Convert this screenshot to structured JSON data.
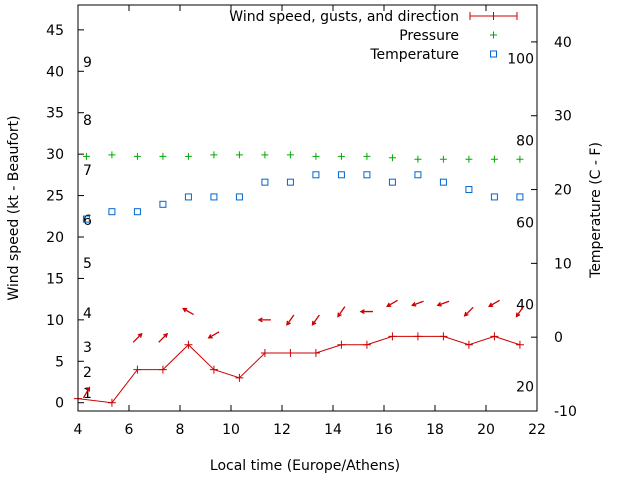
{
  "chart_data": {
    "type": "line",
    "xlabel": "Local time (Europe/Athens)",
    "ylabel": "Wind speed (kt - Beaufort)",
    "y2label": "Temperature (C - F)",
    "xlim": [
      4,
      22
    ],
    "ylim": [
      -1,
      48
    ],
    "y2lim": [
      -10,
      45
    ],
    "x_ticks": [
      4,
      6,
      8,
      10,
      12,
      14,
      16,
      18,
      20,
      22
    ],
    "y_ticks": [
      0,
      5,
      10,
      15,
      20,
      25,
      30,
      35,
      40,
      45
    ],
    "y2_ticks": [
      -10,
      0,
      10,
      20,
      30,
      40
    ],
    "beaufort_labels": [
      {
        "value": 1,
        "label": "1"
      },
      {
        "value": 2,
        "label": "2"
      },
      {
        "value": 3,
        "label": "3"
      },
      {
        "value": 4,
        "label": "4"
      },
      {
        "value": 5,
        "label": "5"
      },
      {
        "value": 6,
        "label": "6"
      },
      {
        "value": 7,
        "label": "7"
      },
      {
        "value": 8,
        "label": "8"
      },
      {
        "value": 9,
        "label": "9"
      }
    ],
    "fahrenheit_labels": [
      {
        "value": 20,
        "label": "20"
      },
      {
        "value": 40,
        "label": "40"
      },
      {
        "value": 60,
        "label": "60"
      },
      {
        "value": 80,
        "label": "80"
      },
      {
        "value": 100,
        "label": "100"
      }
    ],
    "legend": {
      "position": "top-right",
      "entries": [
        "Wind speed, gusts, and direction",
        "Pressure",
        "Temperature"
      ]
    },
    "colors": {
      "wind": "#cc0000",
      "pressure": "#00aa00",
      "temperature": "#0066cc"
    },
    "series": [
      {
        "name": "Wind speed",
        "axis": "y1",
        "x": [
          4.0,
          5.33,
          6.33,
          7.33,
          8.33,
          9.33,
          10.33,
          11.33,
          12.33,
          13.33,
          14.33,
          15.33,
          16.33,
          17.33,
          18.33,
          19.33,
          20.33,
          21.33
        ],
        "values": [
          0.5,
          0,
          4,
          4,
          7,
          4,
          3,
          6,
          6,
          6,
          7,
          7,
          8,
          8,
          8,
          7,
          8,
          7
        ]
      },
      {
        "name": "Wind direction",
        "x": [
          4.33,
          6.33,
          7.33,
          8.33,
          9.33,
          11.33,
          12.33,
          13.33,
          14.33,
          15.33,
          16.33,
          17.33,
          18.33,
          19.33,
          20.33,
          21.33
        ],
        "y": [
          1.2,
          7.8,
          7.8,
          11.0,
          8.2,
          10.0,
          10.0,
          10.0,
          11.0,
          11.0,
          12.0,
          12.0,
          12.0,
          11.0,
          12.0,
          11.0
        ],
        "angles_deg": [
          60,
          45,
          45,
          150,
          210,
          180,
          235,
          235,
          235,
          180,
          210,
          200,
          200,
          225,
          210,
          235
        ]
      },
      {
        "name": "Pressure",
        "axis": "y2",
        "x": [
          4.33,
          5.33,
          6.33,
          7.33,
          8.33,
          9.33,
          10.33,
          11.33,
          12.33,
          13.33,
          14.33,
          15.33,
          16.33,
          17.33,
          18.33,
          19.33,
          20.33,
          21.33
        ],
        "values": [
          24.5,
          24.7,
          24.5,
          24.5,
          24.5,
          24.7,
          24.7,
          24.7,
          24.7,
          24.5,
          24.5,
          24.5,
          24.3,
          24.1,
          24.1,
          24.1,
          24.1,
          24.1
        ]
      },
      {
        "name": "Temperature",
        "axis": "y2",
        "x": [
          4.33,
          5.33,
          6.33,
          7.33,
          8.33,
          9.33,
          10.33,
          11.33,
          12.33,
          13.33,
          14.33,
          15.33,
          16.33,
          17.33,
          18.33,
          19.33,
          20.33,
          21.33
        ],
        "values": [
          16,
          17,
          17,
          18,
          19,
          19,
          19,
          21,
          21,
          22,
          22,
          22,
          21,
          22,
          21,
          20,
          19,
          19
        ]
      }
    ]
  }
}
